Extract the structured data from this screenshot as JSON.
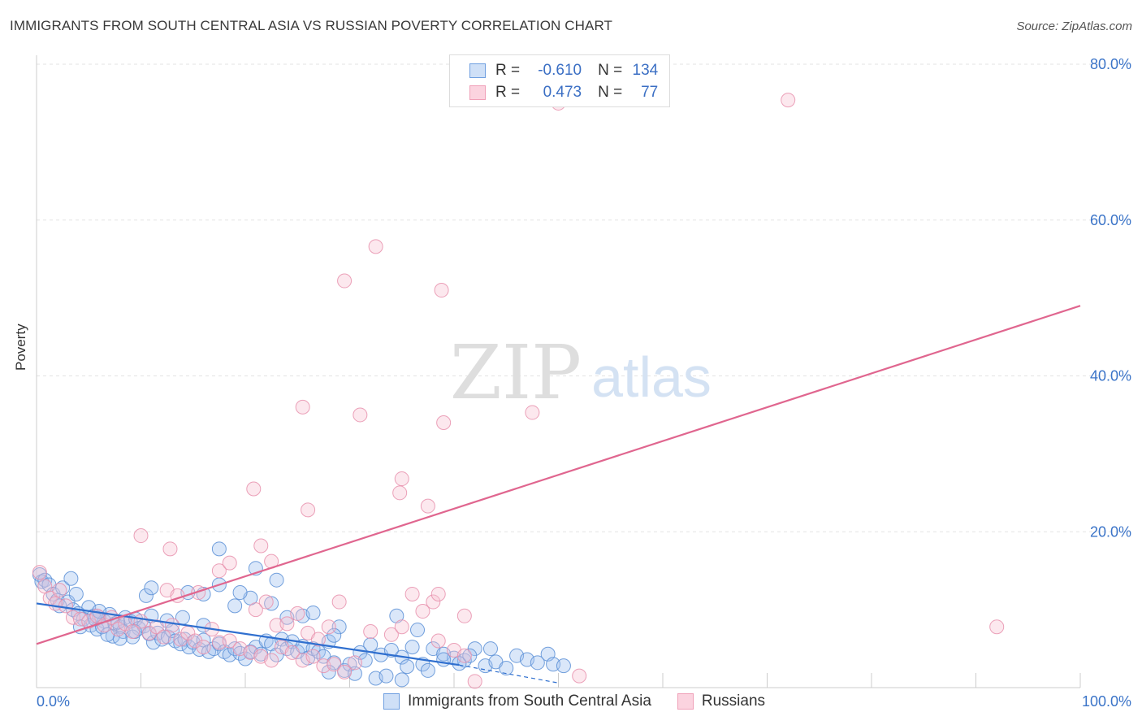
{
  "title": "IMMIGRANTS FROM SOUTH CENTRAL ASIA VS RUSSIAN POVERTY CORRELATION CHART",
  "source": "Source: ZipAtlas.com",
  "watermark": {
    "zip": "ZIP",
    "atlas": "atlas"
  },
  "legend": {
    "rows": [
      {
        "r_label": "R =",
        "r_value": "-0.610",
        "n_label": "N =",
        "n_value": "134",
        "color": "#6f9fe0"
      },
      {
        "r_label": "R =",
        "r_value": "0.473",
        "n_label": "N =",
        "n_value": "77",
        "color": "#f0a0b8"
      }
    ]
  },
  "bottom_legend": {
    "items": [
      {
        "label": "Immigrants from South Central Asia",
        "color": "#6f9fe0"
      },
      {
        "label": "Russians",
        "color": "#f0a0b8"
      }
    ]
  },
  "chart_data": {
    "type": "scatter",
    "title": "IMMIGRANTS FROM SOUTH CENTRAL ASIA VS RUSSIAN POVERTY CORRELATION CHART",
    "xlabel": "",
    "ylabel": "Poverty",
    "xlim": [
      0,
      100
    ],
    "ylim": [
      0,
      80
    ],
    "x_tick_labels": [
      "0.0%",
      "100.0%"
    ],
    "y_ticks": [
      20,
      40,
      60,
      80
    ],
    "y_tick_labels": [
      "20.0%",
      "40.0%",
      "60.0%",
      "80.0%"
    ],
    "grid": true,
    "legend_position": "top-center",
    "colors": {
      "blue": "#5b8fd6",
      "pink": "#e8779f",
      "blue_line": "#2f6fcf",
      "pink_line": "#e0668f"
    },
    "series": [
      {
        "name": "Immigrants from South Central Asia",
        "color": "#6f9fe0",
        "points": [
          [
            0.3,
            14.5
          ],
          [
            0.5,
            13.6
          ],
          [
            0.8,
            13.8
          ],
          [
            1.2,
            13.2
          ],
          [
            1.6,
            12.0
          ],
          [
            2.0,
            11.2
          ],
          [
            2.5,
            12.8
          ],
          [
            3.0,
            11.0
          ],
          [
            3.3,
            14.0
          ],
          [
            2.2,
            10.5
          ],
          [
            3.5,
            10.0
          ],
          [
            4.0,
            9.5
          ],
          [
            4.5,
            8.8
          ],
          [
            5.0,
            10.3
          ],
          [
            5.5,
            9.2
          ],
          [
            6.0,
            9.0
          ],
          [
            6.5,
            8.5
          ],
          [
            7.0,
            9.4
          ],
          [
            4.2,
            7.8
          ],
          [
            5.2,
            8.0
          ],
          [
            5.8,
            7.5
          ],
          [
            6.3,
            7.8
          ],
          [
            7.5,
            8.2
          ],
          [
            8.0,
            7.8
          ],
          [
            8.5,
            9.0
          ],
          [
            9.0,
            8.5
          ],
          [
            9.5,
            8.8
          ],
          [
            7.3,
            6.6
          ],
          [
            8.3,
            7.2
          ],
          [
            9.8,
            7.6
          ],
          [
            10.3,
            7.9
          ],
          [
            10.8,
            6.9
          ],
          [
            11.2,
            5.8
          ],
          [
            11.6,
            7.0
          ],
          [
            12.0,
            6.2
          ],
          [
            12.6,
            6.5
          ],
          [
            13.0,
            7.3
          ],
          [
            13.3,
            6.0
          ],
          [
            13.8,
            5.6
          ],
          [
            14.2,
            6.2
          ],
          [
            14.6,
            5.2
          ],
          [
            15.0,
            5.8
          ],
          [
            15.6,
            4.9
          ],
          [
            16.0,
            6.1
          ],
          [
            16.5,
            4.6
          ],
          [
            17.0,
            5.0
          ],
          [
            17.5,
            5.6
          ],
          [
            18.0,
            4.6
          ],
          [
            18.5,
            4.2
          ],
          [
            19.0,
            5.0
          ],
          [
            19.5,
            4.4
          ],
          [
            20.0,
            3.7
          ],
          [
            20.5,
            4.6
          ],
          [
            21.0,
            5.2
          ],
          [
            21.5,
            4.3
          ],
          [
            22.0,
            6.0
          ],
          [
            22.5,
            5.6
          ],
          [
            23.0,
            4.2
          ],
          [
            23.5,
            6.2
          ],
          [
            24.0,
            5.0
          ],
          [
            24.5,
            5.9
          ],
          [
            25.0,
            4.6
          ],
          [
            25.5,
            5.3
          ],
          [
            26.0,
            3.8
          ],
          [
            26.5,
            5.0
          ],
          [
            27.0,
            4.6
          ],
          [
            27.5,
            4.0
          ],
          [
            28.0,
            5.9
          ],
          [
            28.5,
            3.2
          ],
          [
            29.0,
            7.8
          ],
          [
            29.5,
            2.2
          ],
          [
            30.0,
            3.0
          ],
          [
            31.0,
            4.5
          ],
          [
            31.5,
            3.5
          ],
          [
            32.0,
            5.5
          ],
          [
            33.0,
            4.2
          ],
          [
            34.0,
            4.8
          ],
          [
            35.0,
            3.9
          ],
          [
            35.5,
            2.7
          ],
          [
            36.0,
            5.2
          ],
          [
            37.0,
            3.0
          ],
          [
            38.0,
            5.0
          ],
          [
            39.0,
            4.3
          ],
          [
            40.0,
            3.8
          ],
          [
            41.0,
            3.5
          ],
          [
            42.0,
            5.0
          ],
          [
            43.0,
            2.8
          ],
          [
            44.0,
            3.3
          ],
          [
            45.0,
            2.5
          ],
          [
            46.0,
            4.1
          ],
          [
            47.0,
            3.6
          ],
          [
            48.0,
            3.2
          ],
          [
            49.0,
            4.3
          ],
          [
            49.5,
            3.0
          ],
          [
            50.5,
            2.8
          ],
          [
            10.5,
            11.8
          ],
          [
            11.0,
            12.8
          ],
          [
            14.5,
            12.2
          ],
          [
            16.0,
            12.0
          ],
          [
            17.5,
            13.2
          ],
          [
            19.0,
            10.5
          ],
          [
            20.5,
            11.5
          ],
          [
            21.0,
            15.3
          ],
          [
            23.0,
            13.8
          ],
          [
            24.0,
            9.0
          ],
          [
            25.5,
            9.2
          ],
          [
            28.0,
            2.0
          ],
          [
            30.5,
            1.8
          ],
          [
            32.5,
            1.2
          ],
          [
            33.5,
            1.5
          ],
          [
            35.0,
            1.0
          ],
          [
            37.5,
            2.2
          ],
          [
            39.0,
            3.6
          ],
          [
            40.5,
            3.1
          ],
          [
            41.5,
            4.1
          ],
          [
            43.5,
            5.0
          ],
          [
            36.5,
            7.4
          ],
          [
            34.5,
            9.2
          ],
          [
            28.5,
            6.7
          ],
          [
            26.5,
            9.6
          ],
          [
            22.5,
            10.8
          ],
          [
            19.5,
            12.2
          ],
          [
            16.0,
            8.0
          ],
          [
            14.0,
            9.0
          ],
          [
            12.5,
            8.6
          ],
          [
            11.0,
            9.2
          ],
          [
            9.2,
            6.5
          ],
          [
            8.0,
            6.3
          ],
          [
            6.8,
            6.8
          ],
          [
            5.6,
            8.8
          ],
          [
            3.8,
            12.0
          ],
          [
            17.5,
            17.8
          ],
          [
            6.0,
            9.8
          ],
          [
            7.8,
            8.4
          ],
          [
            9.4,
            7.2
          ]
        ]
      },
      {
        "name": "Russians",
        "color": "#f0a0b8",
        "points": [
          [
            0.3,
            14.8
          ],
          [
            0.8,
            13.0
          ],
          [
            1.3,
            11.5
          ],
          [
            1.8,
            10.8
          ],
          [
            2.2,
            12.5
          ],
          [
            2.8,
            10.5
          ],
          [
            3.5,
            9.0
          ],
          [
            4.2,
            8.8
          ],
          [
            5.0,
            8.5
          ],
          [
            5.8,
            9.2
          ],
          [
            6.5,
            8.0
          ],
          [
            7.2,
            9.0
          ],
          [
            7.8,
            7.5
          ],
          [
            8.5,
            8.2
          ],
          [
            9.2,
            7.2
          ],
          [
            10.0,
            8.5
          ],
          [
            10.8,
            7.0
          ],
          [
            11.5,
            7.8
          ],
          [
            12.2,
            6.5
          ],
          [
            13.0,
            8.0
          ],
          [
            13.8,
            6.2
          ],
          [
            14.5,
            7.0
          ],
          [
            15.2,
            6.0
          ],
          [
            16.0,
            5.2
          ],
          [
            16.8,
            7.5
          ],
          [
            17.5,
            5.8
          ],
          [
            18.5,
            6.0
          ],
          [
            19.5,
            5.0
          ],
          [
            20.5,
            4.5
          ],
          [
            21.5,
            4.0
          ],
          [
            22.5,
            3.5
          ],
          [
            23.5,
            5.2
          ],
          [
            24.5,
            4.5
          ],
          [
            25.5,
            3.5
          ],
          [
            26.5,
            4.0
          ],
          [
            27.5,
            2.8
          ],
          [
            28.5,
            3.0
          ],
          [
            29.5,
            2.0
          ],
          [
            30.5,
            3.2
          ],
          [
            12.5,
            12.5
          ],
          [
            13.5,
            11.8
          ],
          [
            15.5,
            12.2
          ],
          [
            17.5,
            15.0
          ],
          [
            18.5,
            16.0
          ],
          [
            21.0,
            10.0
          ],
          [
            22.0,
            11.0
          ],
          [
            23.0,
            8.0
          ],
          [
            24.0,
            8.2
          ],
          [
            25.0,
            9.5
          ],
          [
            26.0,
            7.0
          ],
          [
            27.0,
            6.2
          ],
          [
            28.0,
            7.8
          ],
          [
            29.0,
            11.0
          ],
          [
            32.0,
            7.2
          ],
          [
            34.0,
            6.8
          ],
          [
            35.0,
            7.8
          ],
          [
            36.0,
            12.0
          ],
          [
            37.0,
            9.8
          ],
          [
            38.0,
            11.0
          ],
          [
            38.5,
            6.0
          ],
          [
            40.0,
            4.8
          ],
          [
            41.0,
            4.1
          ],
          [
            42.0,
            0.8
          ],
          [
            10.0,
            19.5
          ],
          [
            12.8,
            17.8
          ],
          [
            21.5,
            18.2
          ],
          [
            22.5,
            16.2
          ],
          [
            20.8,
            25.5
          ],
          [
            26.0,
            22.8
          ],
          [
            34.8,
            25.0
          ],
          [
            35.0,
            26.8
          ],
          [
            37.5,
            23.3
          ],
          [
            25.5,
            36.0
          ],
          [
            31.0,
            35.0
          ],
          [
            39.0,
            34.0
          ],
          [
            47.5,
            35.3
          ],
          [
            29.5,
            52.2
          ],
          [
            32.5,
            56.6
          ],
          [
            38.8,
            51.0
          ],
          [
            50.0,
            75.0
          ],
          [
            72.0,
            75.4
          ],
          [
            92.0,
            7.8
          ],
          [
            52.0,
            1.5
          ],
          [
            41.0,
            9.2
          ],
          [
            38.5,
            12.0
          ]
        ]
      }
    ],
    "trendlines": [
      {
        "series": "Immigrants from South Central Asia",
        "x0": 0,
        "y0": 10.8,
        "x1": 40.5,
        "y1": 2.9,
        "dashed_to": [
          50,
          0.6
        ]
      },
      {
        "series": "Russians",
        "x0": 0,
        "y0": 5.6,
        "x1": 100,
        "y1": 49.0
      }
    ]
  }
}
